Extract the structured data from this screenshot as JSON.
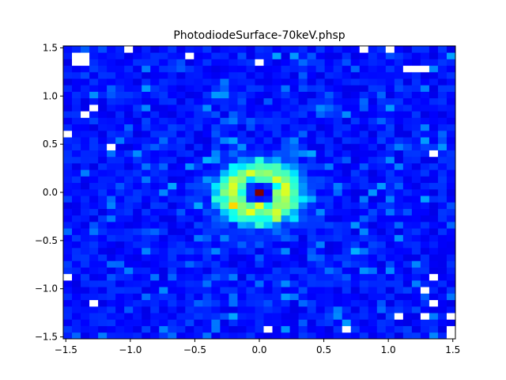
{
  "chart_data": {
    "type": "heatmap",
    "title": "PhotodiodeSurface-70keV.phsp",
    "xlabel": "",
    "ylabel": "",
    "xlim": [
      -1.52,
      1.52
    ],
    "ylim": [
      -1.52,
      1.52
    ],
    "x_ticks": [
      -1.5,
      -1.0,
      -0.5,
      0.0,
      0.5,
      1.0,
      1.5
    ],
    "x_tick_labels": [
      "−1.5",
      "−1.0",
      "−0.5",
      "0.0",
      "0.5",
      "1.0",
      "1.5"
    ],
    "y_ticks": [
      -1.5,
      -1.0,
      -0.5,
      0.0,
      0.5,
      1.0,
      1.5
    ],
    "y_tick_labels": [
      "−1.5",
      "−1.0",
      "−0.5",
      "0.0",
      "0.5",
      "1.0",
      "1.5"
    ],
    "bins": [
      45,
      45
    ],
    "colormap": "jet",
    "background": "dark-blue noise",
    "hot_cells": [
      {
        "x": 0.0,
        "y": 0.0,
        "level": 1.0
      },
      {
        "x": -0.2,
        "y": 0.15,
        "level": 0.55
      },
      {
        "x": 0.1,
        "y": 0.18,
        "level": 0.52
      },
      {
        "x": -0.25,
        "y": 0.03,
        "level": 0.5
      },
      {
        "x": 0.0,
        "y": -0.15,
        "level": 0.6
      },
      {
        "x": -0.15,
        "y": -0.22,
        "level": 0.5
      },
      {
        "x": 0.05,
        "y": -0.22,
        "level": 0.5
      },
      {
        "x": 0.25,
        "y": -0.12,
        "level": 0.45
      }
    ],
    "ring": {
      "cx": 0.0,
      "cy": 0.0,
      "r": 0.22,
      "level": 0.35
    },
    "empty_cells": [
      {
        "x": -1.42,
        "y": 1.45
      },
      {
        "x": -1.36,
        "y": 1.45
      },
      {
        "x": -1.42,
        "y": 1.38
      },
      {
        "x": -1.36,
        "y": 1.38
      },
      {
        "x": -1.02,
        "y": 1.48
      },
      {
        "x": -0.54,
        "y": 1.4
      },
      {
        "x": 0.0,
        "y": 1.32
      },
      {
        "x": 0.78,
        "y": 1.48
      },
      {
        "x": 1.02,
        "y": 1.48
      },
      {
        "x": 1.15,
        "y": 1.25
      },
      {
        "x": 1.22,
        "y": 1.25
      },
      {
        "x": 1.29,
        "y": 1.25
      },
      {
        "x": -1.3,
        "y": 0.86
      },
      {
        "x": -1.36,
        "y": 0.78
      },
      {
        "x": -1.48,
        "y": 0.62
      },
      {
        "x": -1.15,
        "y": 0.47
      },
      {
        "x": 1.34,
        "y": 0.38
      },
      {
        "x": -1.48,
        "y": -0.86
      },
      {
        "x": 1.34,
        "y": -0.86
      },
      {
        "x": 1.25,
        "y": -1.02
      },
      {
        "x": 1.34,
        "y": -1.18
      },
      {
        "x": -1.25,
        "y": -1.18
      },
      {
        "x": 1.1,
        "y": -1.25
      },
      {
        "x": 1.25,
        "y": -1.25
      },
      {
        "x": 1.48,
        "y": -1.25
      },
      {
        "x": 0.1,
        "y": -1.4
      },
      {
        "x": 0.7,
        "y": -1.4
      },
      {
        "x": 1.48,
        "y": -1.4
      },
      {
        "x": 1.48,
        "y": -1.48
      }
    ]
  }
}
